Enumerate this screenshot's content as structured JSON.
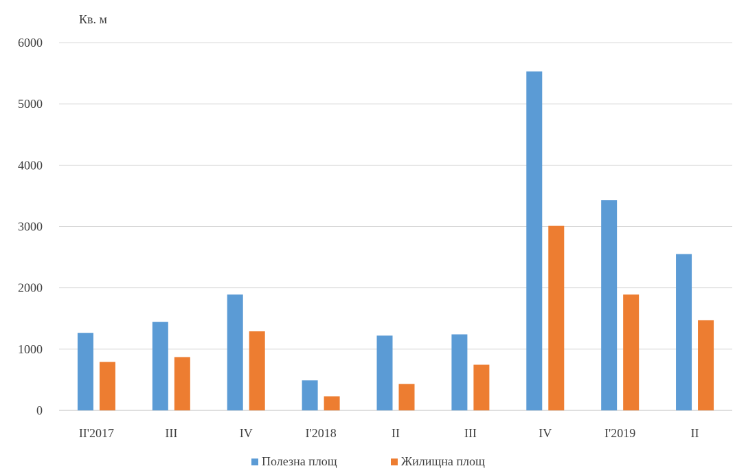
{
  "chart_data": {
    "type": "bar",
    "ylabel": "Кв. м",
    "categories": [
      "II'2017",
      "III",
      "IV",
      "I'2018",
      "II",
      "III",
      "IV",
      "I'2019",
      "II"
    ],
    "series": [
      {
        "name": "Полезна площ",
        "color": "#5b9bd5",
        "values": [
          1265,
          1445,
          1890,
          490,
          1220,
          1240,
          5530,
          3430,
          2550
        ]
      },
      {
        "name": "Жилищна площ",
        "color": "#ed7d31",
        "values": [
          790,
          870,
          1290,
          230,
          430,
          745,
          3010,
          1890,
          1470
        ]
      }
    ],
    "yticks": [
      "0",
      "1000",
      "2000",
      "3000",
      "4000",
      "5000",
      "6000"
    ],
    "ylim": [
      0,
      6000
    ],
    "grid": true,
    "legend": "bottom"
  }
}
